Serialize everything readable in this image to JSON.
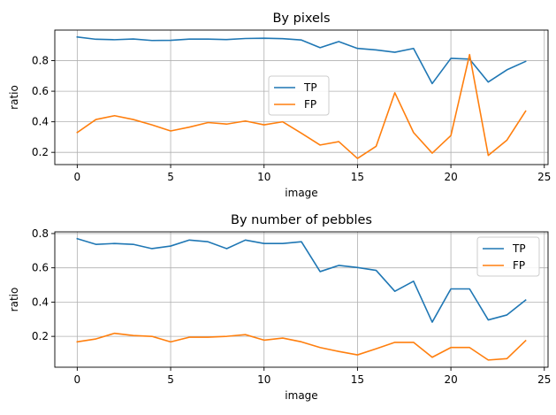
{
  "chart_data": [
    {
      "type": "line",
      "title": "By pixels",
      "xlabel": "image",
      "ylabel": "ratio",
      "xlim": [
        -1.2,
        25.2
      ],
      "ylim": [
        0.12,
        1.0
      ],
      "xticks": [
        0,
        5,
        10,
        15,
        20,
        25
      ],
      "yticks": [
        0.2,
        0.4,
        0.6,
        0.8
      ],
      "xtick_labels": [
        "0",
        "5",
        "10",
        "15",
        "20",
        "25"
      ],
      "ytick_labels": [
        "0.2",
        "0.4",
        "0.6",
        "0.8"
      ],
      "grid": true,
      "legend": "center",
      "x": [
        0,
        1,
        2,
        3,
        4,
        5,
        6,
        7,
        8,
        9,
        10,
        11,
        12,
        13,
        14,
        15,
        16,
        17,
        18,
        19,
        20,
        21,
        22,
        23,
        24
      ],
      "series": [
        {
          "name": "TP",
          "color": "#1f77b4",
          "values": [
            0.955,
            0.94,
            0.937,
            0.942,
            0.932,
            0.933,
            0.941,
            0.941,
            0.938,
            0.945,
            0.947,
            0.944,
            0.935,
            0.885,
            0.925,
            0.88,
            0.87,
            0.855,
            0.88,
            0.65,
            0.815,
            0.81,
            0.66,
            0.74,
            0.795
          ]
        },
        {
          "name": "FP",
          "color": "#ff7f0e",
          "values": [
            0.33,
            0.415,
            0.44,
            0.415,
            0.38,
            0.34,
            0.365,
            0.395,
            0.385,
            0.405,
            0.38,
            0.4,
            0.325,
            0.248,
            0.27,
            0.16,
            0.24,
            0.59,
            0.33,
            0.195,
            0.31,
            0.84,
            0.18,
            0.28,
            0.47
          ]
        }
      ]
    },
    {
      "type": "line",
      "title": "By number of pebbles",
      "xlabel": "image",
      "ylabel": "ratio",
      "xlim": [
        -1.2,
        25.2
      ],
      "ylim": [
        0.02,
        0.81
      ],
      "xticks": [
        0,
        5,
        10,
        15,
        20,
        25
      ],
      "yticks": [
        0.2,
        0.4,
        0.6,
        0.8
      ],
      "xtick_labels": [
        "0",
        "5",
        "10",
        "15",
        "20",
        "25"
      ],
      "ytick_labels": [
        "0.2",
        "0.4",
        "0.6",
        "0.8"
      ],
      "grid": true,
      "legend": "upper right",
      "x": [
        0,
        1,
        2,
        3,
        4,
        5,
        6,
        7,
        8,
        9,
        10,
        11,
        12,
        13,
        14,
        15,
        16,
        17,
        18,
        19,
        20,
        21,
        22,
        23,
        24
      ],
      "series": [
        {
          "name": "TP",
          "color": "#1f77b4",
          "values": [
            0.77,
            0.737,
            0.742,
            0.737,
            0.712,
            0.727,
            0.762,
            0.752,
            0.712,
            0.762,
            0.742,
            0.742,
            0.752,
            0.578,
            0.614,
            0.602,
            0.585,
            0.463,
            0.522,
            0.283,
            0.477,
            0.477,
            0.296,
            0.325,
            0.412
          ]
        },
        {
          "name": "FP",
          "color": "#ff7f0e",
          "values": [
            0.168,
            0.185,
            0.218,
            0.205,
            0.2,
            0.168,
            0.195,
            0.195,
            0.2,
            0.21,
            0.178,
            0.19,
            0.168,
            0.135,
            0.112,
            0.092,
            0.128,
            0.165,
            0.165,
            0.078,
            0.135,
            0.135,
            0.062,
            0.07,
            0.175
          ]
        }
      ]
    }
  ]
}
